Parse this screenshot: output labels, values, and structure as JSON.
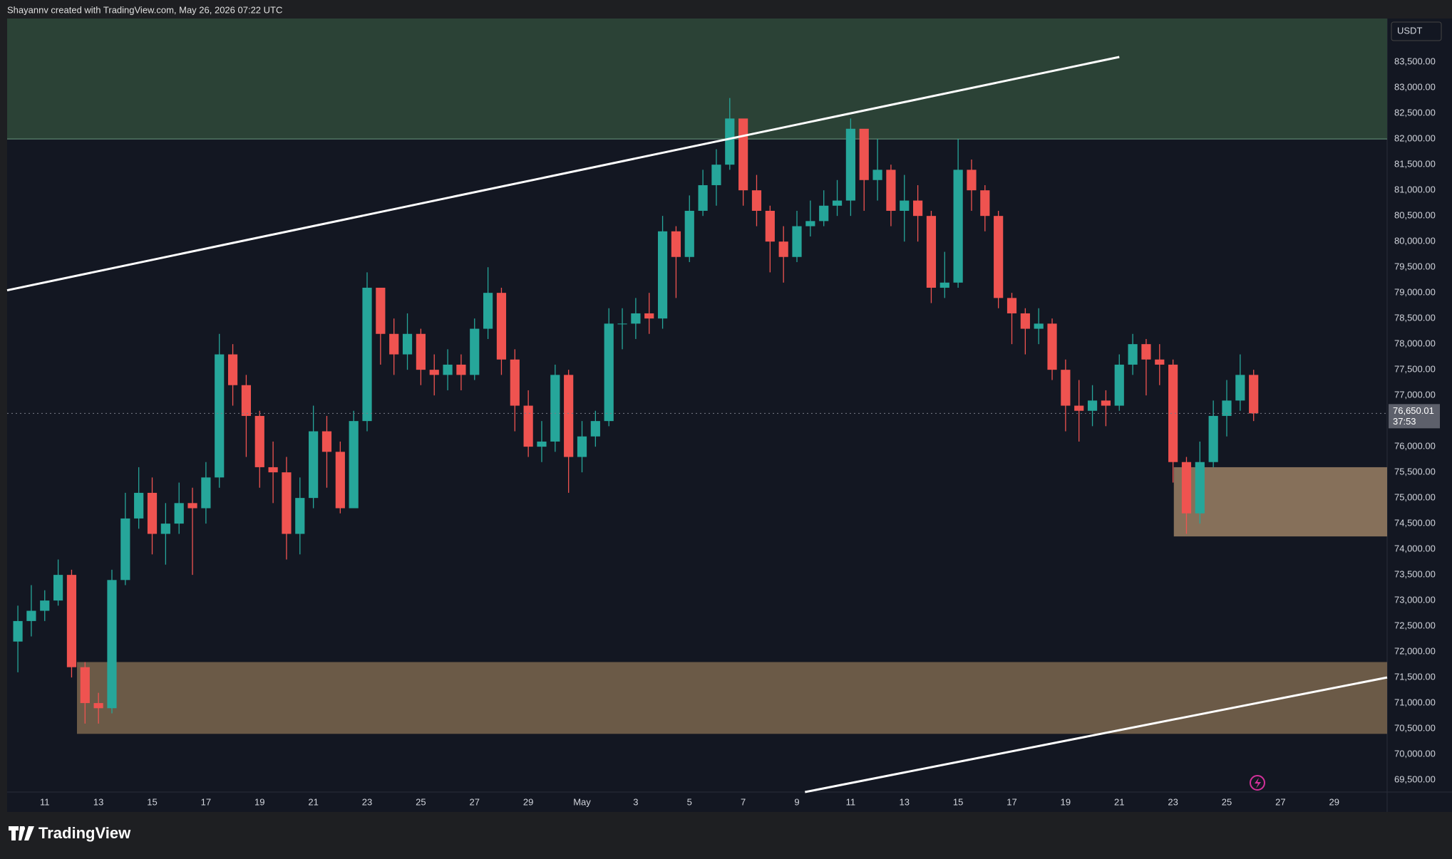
{
  "header": "Shayannv created with TradingView.com, May 26, 2026 07:22 UTC",
  "brand": "TradingView",
  "chart_data": {
    "type": "candlestick",
    "currency": "USDT",
    "colors": {
      "up": "#26a69a",
      "down": "#ef5350"
    },
    "grid": false,
    "xlim": [
      99.6,
      150.97
    ],
    "ylim": [
      69265,
      84350
    ],
    "xticks": [
      {
        "value": 101,
        "label": "11"
      },
      {
        "value": 103,
        "label": "13"
      },
      {
        "value": 105,
        "label": "15"
      },
      {
        "value": 107,
        "label": "17"
      },
      {
        "value": 109,
        "label": "19"
      },
      {
        "value": 111,
        "label": "21"
      },
      {
        "value": 113,
        "label": "23"
      },
      {
        "value": 115,
        "label": "25"
      },
      {
        "value": 117,
        "label": "27"
      },
      {
        "value": 119,
        "label": "29"
      },
      {
        "value": 121,
        "label": "May"
      },
      {
        "value": 123,
        "label": "3"
      },
      {
        "value": 125,
        "label": "5"
      },
      {
        "value": 127,
        "label": "7"
      },
      {
        "value": 129,
        "label": "9"
      },
      {
        "value": 131,
        "label": "11"
      },
      {
        "value": 133,
        "label": "13"
      },
      {
        "value": 135,
        "label": "15"
      },
      {
        "value": 137,
        "label": "17"
      },
      {
        "value": 139,
        "label": "19"
      },
      {
        "value": 141,
        "label": "21"
      },
      {
        "value": 143,
        "label": "23"
      },
      {
        "value": 145,
        "label": "25"
      },
      {
        "value": 147,
        "label": "27"
      },
      {
        "value": 149,
        "label": "29"
      }
    ],
    "yticks": [
      {
        "value": 69500,
        "label": "69,500.00"
      },
      {
        "value": 70000,
        "label": "70,000.00"
      },
      {
        "value": 70500,
        "label": "70,500.00"
      },
      {
        "value": 71000,
        "label": "71,000.00"
      },
      {
        "value": 71500,
        "label": "71,500.00"
      },
      {
        "value": 72000,
        "label": "72,000.00"
      },
      {
        "value": 72500,
        "label": "72,500.00"
      },
      {
        "value": 73000,
        "label": "73,000.00"
      },
      {
        "value": 73500,
        "label": "73,500.00"
      },
      {
        "value": 74000,
        "label": "74,000.00"
      },
      {
        "value": 74500,
        "label": "74,500.00"
      },
      {
        "value": 75000,
        "label": "75,000.00"
      },
      {
        "value": 75500,
        "label": "75,500.00"
      },
      {
        "value": 76000,
        "label": "76,000.00"
      },
      {
        "value": 76500,
        "label": "76,500.00"
      },
      {
        "value": 77000,
        "label": "77,000.00"
      },
      {
        "value": 77500,
        "label": "77,500.00"
      },
      {
        "value": 78000,
        "label": "78,000.00"
      },
      {
        "value": 78500,
        "label": "78,500.00"
      },
      {
        "value": 79000,
        "label": "79,000.00"
      },
      {
        "value": 79500,
        "label": "79,500.00"
      },
      {
        "value": 80000,
        "label": "80,000.00"
      },
      {
        "value": 80500,
        "label": "80,500.00"
      },
      {
        "value": 81000,
        "label": "81,000.00"
      },
      {
        "value": 81500,
        "label": "81,500.00"
      },
      {
        "value": 82000,
        "label": "82,000.00"
      },
      {
        "value": 82500,
        "label": "82,500.00"
      },
      {
        "value": 83000,
        "label": "83,000.00"
      },
      {
        "value": 83500,
        "label": "83,500.00"
      }
    ],
    "x": [
      100,
      100.5,
      101,
      101.5,
      102,
      102.5,
      103,
      103.5,
      104,
      104.5,
      105,
      105.5,
      106,
      106.5,
      107,
      107.5,
      108,
      108.5,
      109,
      109.5,
      110,
      110.5,
      111,
      111.5,
      112,
      112.5,
      113,
      113.5,
      114,
      114.5,
      115,
      115.5,
      116,
      116.5,
      117,
      117.5,
      118,
      118.5,
      119,
      119.5,
      120,
      120.5,
      121,
      121.5,
      122,
      122.5,
      123,
      123.5,
      124,
      124.5,
      125,
      125.5,
      126,
      126.5,
      127,
      127.5,
      128,
      128.5,
      129,
      129.5,
      130,
      130.5,
      131,
      131.5,
      132,
      132.5,
      133,
      133.5,
      134,
      134.5,
      135,
      135.5,
      136,
      136.5,
      137,
      137.5,
      138,
      138.5,
      139,
      139.5,
      140,
      140.5,
      141,
      141.5,
      142,
      142.5,
      143,
      143.5,
      144,
      144.5,
      145,
      145.5,
      146
    ],
    "open": [
      72200,
      72600,
      72800,
      73000,
      73500,
      71700,
      71000,
      70900,
      73400,
      74600,
      75100,
      74300,
      74500,
      74900,
      74800,
      75400,
      77800,
      77200,
      76600,
      75600,
      75500,
      74300,
      75000,
      76300,
      75900,
      74800,
      76500,
      79100,
      78200,
      77800,
      78200,
      77500,
      77400,
      77600,
      77400,
      78300,
      79000,
      77700,
      76800,
      76000,
      76100,
      77400,
      75800,
      76200,
      76500,
      78400,
      78400,
      78600,
      78500,
      80200,
      79700,
      80600,
      81100,
      81500,
      82400,
      81000,
      80600,
      80000,
      79700,
      80300,
      80400,
      80700,
      80800,
      82200,
      81200,
      81400,
      80600,
      80800,
      80500,
      79100,
      79200,
      81400,
      81000,
      80500,
      78900,
      78600,
      78300,
      78400,
      77500,
      76800,
      76700,
      76900,
      76800,
      77600,
      78000,
      77700,
      77600,
      75700,
      74700,
      75700,
      76600,
      76900,
      77400
    ],
    "high": [
      72900,
      73300,
      73200,
      73800,
      73600,
      71800,
      71200,
      73600,
      75100,
      75600,
      75400,
      74900,
      75300,
      75200,
      75700,
      78200,
      78000,
      77400,
      76700,
      76100,
      75800,
      75400,
      76800,
      76600,
      76100,
      76700,
      79400,
      79000,
      78500,
      78600,
      78300,
      77800,
      77900,
      77800,
      78500,
      79500,
      79100,
      77900,
      77100,
      76500,
      77600,
      77500,
      76500,
      76700,
      78700,
      78700,
      78900,
      79000,
      80500,
      80300,
      80900,
      81400,
      81800,
      82800,
      82300,
      81300,
      80700,
      80300,
      80600,
      80800,
      81000,
      81200,
      82400,
      82100,
      82000,
      81500,
      81300,
      81100,
      80600,
      79800,
      82000,
      81600,
      81100,
      80600,
      79000,
      78700,
      78700,
      78500,
      77700,
      77300,
      77200,
      77100,
      77800,
      78200,
      78100,
      78000,
      77700,
      75800,
      76100,
      76900,
      77300,
      77800,
      77500
    ],
    "low": [
      71600,
      72300,
      72600,
      72900,
      71500,
      70600,
      70600,
      70800,
      73300,
      74400,
      73900,
      73700,
      74300,
      73500,
      74500,
      75200,
      76800,
      75800,
      75200,
      74900,
      73800,
      73900,
      74800,
      75200,
      74700,
      74900,
      76300,
      77600,
      77400,
      77500,
      77200,
      77000,
      77100,
      77100,
      77300,
      78100,
      77400,
      76300,
      75800,
      75700,
      75900,
      75100,
      75500,
      76000,
      76400,
      77900,
      78100,
      78200,
      78300,
      78900,
      79600,
      80500,
      80700,
      81400,
      80700,
      80300,
      79400,
      79200,
      79600,
      80100,
      80300,
      80500,
      80500,
      80600,
      80800,
      80300,
      80000,
      80000,
      78800,
      78900,
      79100,
      80600,
      80200,
      78700,
      78000,
      77800,
      78000,
      77300,
      76300,
      76100,
      76400,
      76400,
      76700,
      77400,
      77000,
      77200,
      75300,
      74300,
      74500,
      75600,
      76200,
      76700,
      76500
    ],
    "close": [
      72600,
      72800,
      73000,
      73500,
      71700,
      71000,
      70900,
      73400,
      74600,
      75100,
      74300,
      74500,
      74900,
      74800,
      75400,
      77800,
      77200,
      76600,
      75600,
      75500,
      74300,
      75000,
      76300,
      75900,
      74800,
      76500,
      79100,
      78200,
      77800,
      78200,
      77500,
      77400,
      77600,
      77400,
      78300,
      79000,
      77700,
      76800,
      76000,
      76100,
      77400,
      75800,
      76200,
      76500,
      78400,
      78400,
      78600,
      78500,
      80200,
      79700,
      80600,
      81100,
      81500,
      82400,
      81000,
      80600,
      80000,
      79700,
      80300,
      80400,
      80700,
      80800,
      82200,
      81200,
      81400,
      80600,
      80800,
      80500,
      79100,
      79200,
      81400,
      81000,
      80500,
      78900,
      78600,
      78300,
      78400,
      77500,
      76800,
      76700,
      76900,
      76800,
      77600,
      78000,
      77700,
      77600,
      75700,
      74700,
      75700,
      76600,
      76900,
      77400,
      76650.01
    ],
    "last_price": {
      "value": 76650.01,
      "label": "76,650.01"
    },
    "countdown": "37:53",
    "supply_zone": {
      "low": 82000,
      "color": "#2b4236",
      "edge": "#6c9a80"
    },
    "demand_zones": [
      {
        "x_start": 102.2,
        "low": 70400,
        "high": 71800,
        "color": "#6b5a47"
      },
      {
        "x_start": 143.03,
        "low": 74250,
        "high": 75600,
        "color": "#86705a"
      }
    ],
    "trendlines": [
      {
        "x": [
          99.6,
          141
        ],
        "y": [
          79050,
          83600
        ]
      },
      {
        "x": [
          129.3,
          150.97
        ],
        "y": [
          69265,
          71500
        ]
      }
    ]
  }
}
